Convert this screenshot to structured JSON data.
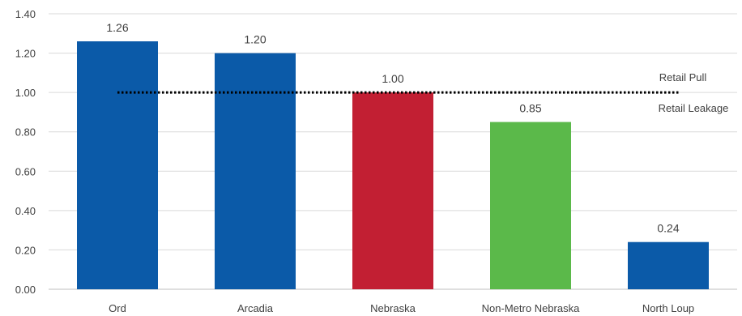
{
  "chart_data": {
    "type": "bar",
    "categories": [
      "Ord",
      "Arcadia",
      "Nebraska",
      "Non-Metro Nebraska",
      "North Loup"
    ],
    "values": [
      1.26,
      1.2,
      1.0,
      0.85,
      0.24
    ],
    "value_labels": [
      "1.26",
      "1.20",
      "1.00",
      "0.85",
      "0.24"
    ],
    "bar_colors": [
      "#0b5aa8",
      "#0b5aa8",
      "#c21f33",
      "#5bb94a",
      "#0b5aa8"
    ],
    "ylim": [
      0,
      1.4
    ],
    "yticks": [
      0,
      0.2,
      0.4,
      0.6,
      0.8,
      1.0,
      1.2,
      1.4
    ],
    "ytick_labels": [
      "0.00",
      "0.20",
      "0.40",
      "0.60",
      "0.80",
      "1.00",
      "1.20",
      "1.40"
    ],
    "grid": true,
    "reference_line": {
      "y": 1.0,
      "style": "dotted",
      "color": "#000000"
    },
    "annotations": [
      {
        "text": "Retail Pull",
        "position": "above reference line, right"
      },
      {
        "text": "Retail Leakage",
        "position": "below reference line, right"
      }
    ],
    "title": "",
    "xlabel": "",
    "ylabel": ""
  }
}
